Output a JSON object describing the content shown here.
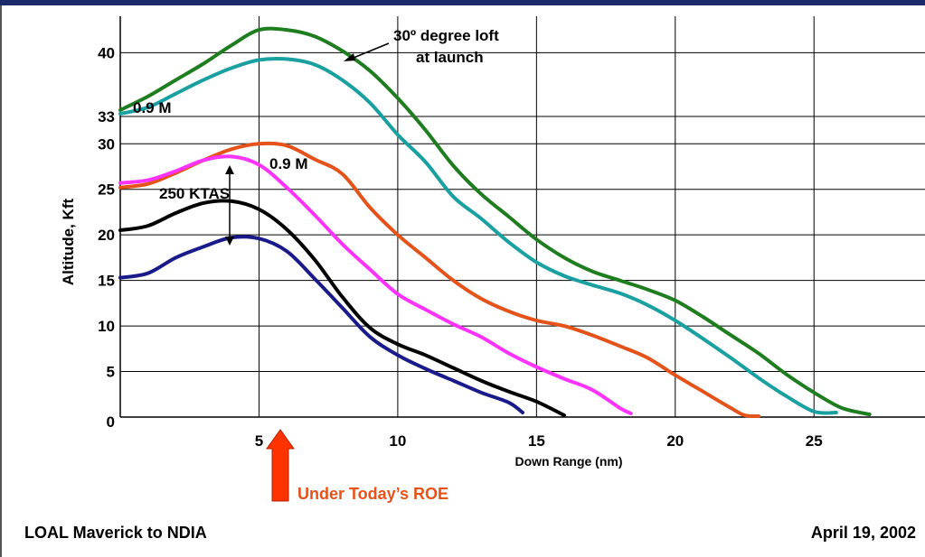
{
  "footer": {
    "left": "LOAL Maverick to NDIA",
    "right": "April 19, 2002"
  },
  "colors": {
    "green": "#1e7d1e",
    "teal": "#1aa0a0",
    "orange": "#e5531a",
    "magenta": "#ff33ff",
    "black": "#000000",
    "navy": "#1a1a8a",
    "arrow": "#ff3300",
    "roe_text": "#e5531a",
    "header_bar": "#1a2a6a"
  },
  "chart_data": {
    "type": "line",
    "xlabel": "Down Range (nm)",
    "ylabel": "Altitude, Kft",
    "xlim": [
      0,
      29
    ],
    "ylim": [
      0,
      44
    ],
    "x_ticks": [
      5,
      10,
      15,
      20,
      25
    ],
    "y_ticks": [
      0,
      5,
      10,
      15,
      20,
      25,
      30,
      33,
      40
    ],
    "grid": "vertical",
    "series": [
      {
        "key": "green",
        "values": [
          [
            0,
            33.7
          ],
          [
            1,
            35.2
          ],
          [
            2,
            37
          ],
          [
            3,
            38.8
          ],
          [
            4,
            40.8
          ],
          [
            5,
            42.5
          ],
          [
            6,
            42.5
          ],
          [
            7,
            41.8
          ],
          [
            8,
            40.2
          ],
          [
            9,
            38
          ],
          [
            10,
            35
          ],
          [
            11,
            31.5
          ],
          [
            12,
            27.6
          ],
          [
            13,
            24.5
          ],
          [
            14,
            22
          ],
          [
            15,
            19.5
          ],
          [
            16,
            17.5
          ],
          [
            17,
            16
          ],
          [
            18,
            15
          ],
          [
            19,
            14
          ],
          [
            20,
            12.8
          ],
          [
            21,
            11
          ],
          [
            22,
            9
          ],
          [
            23,
            7
          ],
          [
            24,
            4.7
          ],
          [
            25,
            2.7
          ],
          [
            26,
            1
          ],
          [
            27,
            0.3
          ]
        ]
      },
      {
        "key": "teal",
        "values": [
          [
            0,
            33.3
          ],
          [
            1,
            34
          ],
          [
            2,
            35.5
          ],
          [
            3,
            37
          ],
          [
            4,
            38.3
          ],
          [
            5,
            39.2
          ],
          [
            6,
            39.3
          ],
          [
            7,
            38.7
          ],
          [
            8,
            37
          ],
          [
            9,
            34.5
          ],
          [
            10,
            31
          ],
          [
            11,
            28
          ],
          [
            12,
            24.2
          ],
          [
            13,
            21.8
          ],
          [
            14,
            19.2
          ],
          [
            15,
            17
          ],
          [
            16,
            15.5
          ],
          [
            17,
            14.5
          ],
          [
            18,
            13.6
          ],
          [
            19,
            12.3
          ],
          [
            20,
            10.6
          ],
          [
            21,
            8.6
          ],
          [
            22,
            6.5
          ],
          [
            23,
            4.3
          ],
          [
            24,
            2.3
          ],
          [
            25,
            0.6
          ],
          [
            25.8,
            0.5
          ]
        ]
      },
      {
        "key": "orange",
        "values": [
          [
            0,
            25.2
          ],
          [
            1,
            25.6
          ],
          [
            2,
            26.8
          ],
          [
            3,
            28.2
          ],
          [
            4,
            29.4
          ],
          [
            5,
            30
          ],
          [
            6,
            29.8
          ],
          [
            7,
            28.3
          ],
          [
            8,
            26.7
          ],
          [
            9,
            23
          ],
          [
            10,
            20
          ],
          [
            11,
            17.5
          ],
          [
            12,
            15
          ],
          [
            13,
            13
          ],
          [
            14,
            11.6
          ],
          [
            15,
            10.6
          ],
          [
            16,
            10
          ],
          [
            17,
            9
          ],
          [
            18,
            7.8
          ],
          [
            19,
            6.5
          ],
          [
            20,
            4.6
          ],
          [
            21,
            2.8
          ],
          [
            22,
            1
          ],
          [
            22.5,
            0.2
          ],
          [
            23,
            0.1
          ]
        ]
      },
      {
        "key": "magenta",
        "values": [
          [
            0,
            25.7
          ],
          [
            1,
            26
          ],
          [
            2,
            27
          ],
          [
            3,
            28.2
          ],
          [
            4,
            28.6
          ],
          [
            5,
            27.7
          ],
          [
            6,
            25.2
          ],
          [
            7,
            22.2
          ],
          [
            8,
            19
          ],
          [
            9,
            16.2
          ],
          [
            10,
            13.5
          ],
          [
            11,
            11.8
          ],
          [
            12,
            10.2
          ],
          [
            13,
            8.8
          ],
          [
            14,
            7
          ],
          [
            15,
            5.5
          ],
          [
            16,
            4.2
          ],
          [
            17,
            3
          ],
          [
            18,
            1
          ],
          [
            18.4,
            0.4
          ]
        ]
      },
      {
        "key": "black",
        "values": [
          [
            0,
            20.5
          ],
          [
            1,
            21
          ],
          [
            2,
            22.4
          ],
          [
            3,
            23.5
          ],
          [
            4,
            23.7
          ],
          [
            5,
            22.8
          ],
          [
            6,
            20.6
          ],
          [
            7,
            17.3
          ],
          [
            8,
            13.2
          ],
          [
            9,
            9.8
          ],
          [
            10,
            8
          ],
          [
            11,
            6.8
          ],
          [
            12,
            5.4
          ],
          [
            13,
            4
          ],
          [
            14,
            2.8
          ],
          [
            15,
            1.7
          ],
          [
            16,
            0.2
          ]
        ]
      },
      {
        "key": "navy",
        "values": [
          [
            0,
            15.3
          ],
          [
            1,
            15.8
          ],
          [
            2,
            17.5
          ],
          [
            3,
            18.7
          ],
          [
            4,
            19.7
          ],
          [
            5,
            19.6
          ],
          [
            6,
            18.2
          ],
          [
            7,
            15.2
          ],
          [
            8,
            12
          ],
          [
            9,
            8.8
          ],
          [
            10,
            6.8
          ],
          [
            11,
            5.3
          ],
          [
            12,
            4
          ],
          [
            13,
            2.7
          ],
          [
            14,
            1.6
          ],
          [
            14.5,
            0.5
          ]
        ]
      }
    ],
    "annotations": [
      {
        "text": "30º degree loft"
      },
      {
        "text": "at launch"
      },
      {
        "text": "0.9 M"
      },
      {
        "text": "0.9 M"
      },
      {
        "text": "250 KTAS"
      },
      {
        "text": "Under Today’s ROE"
      }
    ]
  }
}
